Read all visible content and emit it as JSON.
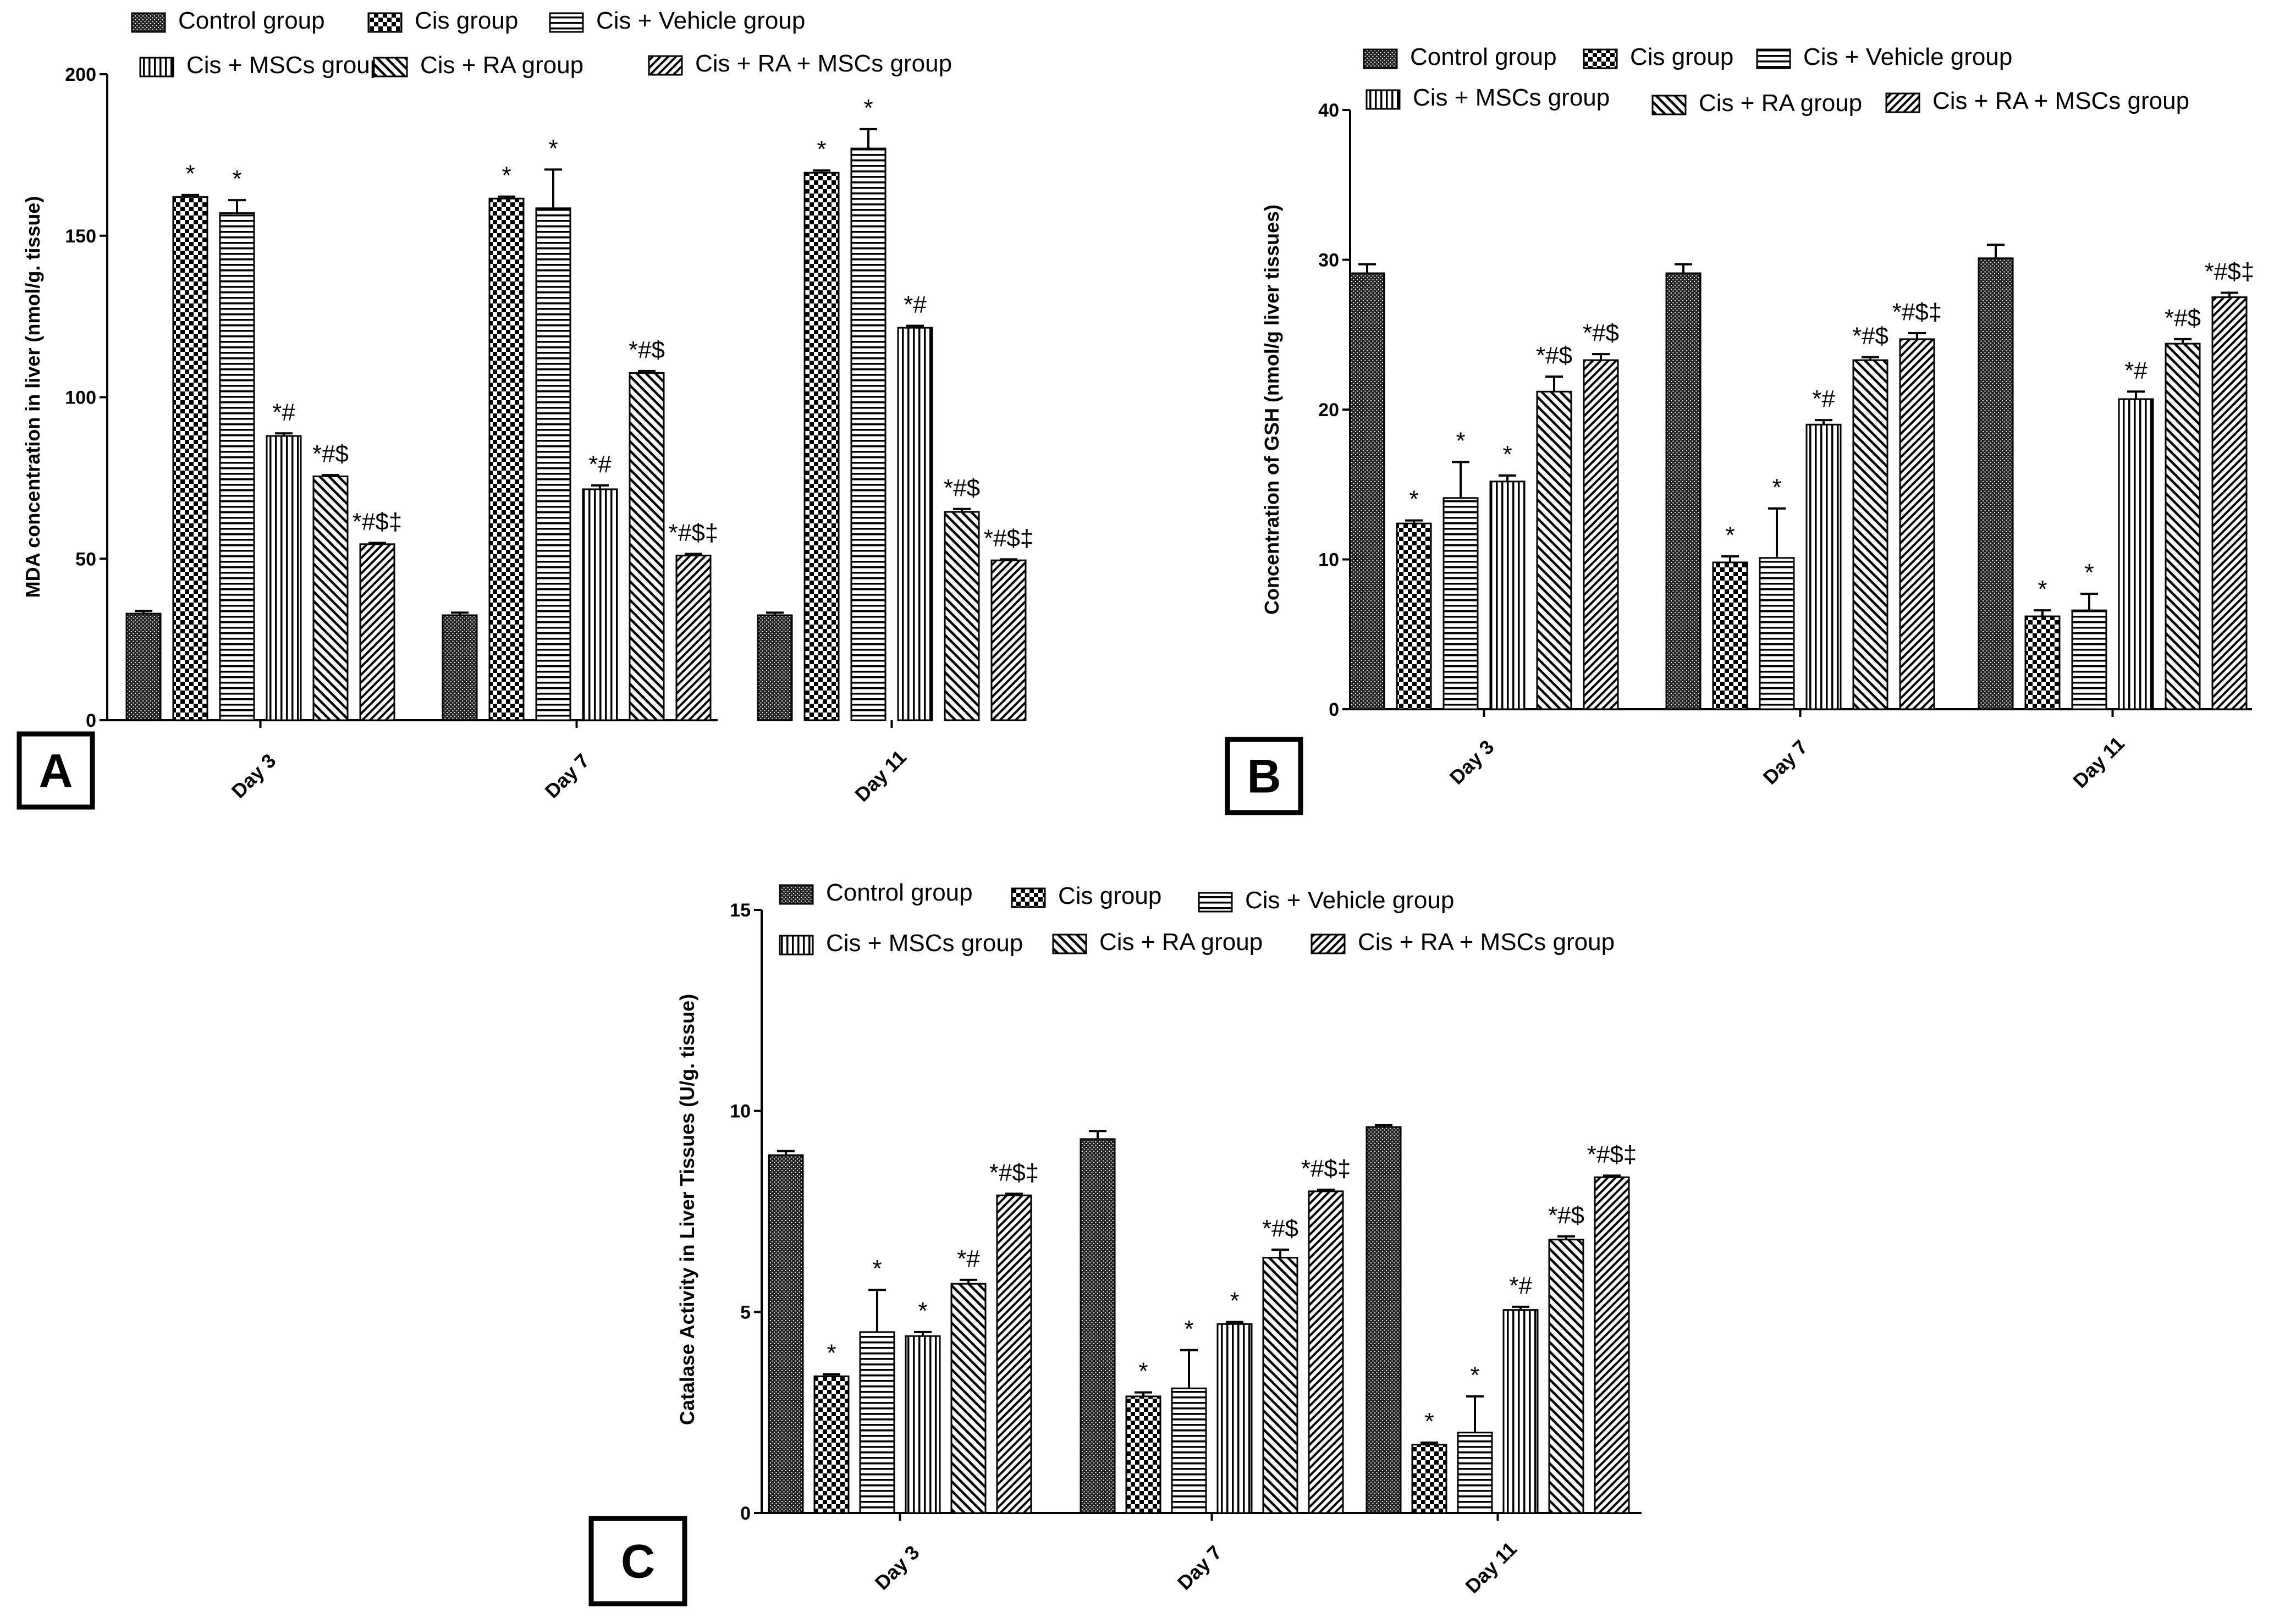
{
  "legend_labels": [
    "Control group",
    "Cis group",
    "Cis + Vehicle group",
    "Cis + MSCs group",
    "Cis + RA group",
    "Cis + RA + MSCs group"
  ],
  "colors": {
    "ink": "#000000",
    "paper": "#ffffff"
  },
  "chart_data": [
    {
      "panel": "A",
      "type": "bar",
      "title": "",
      "xlabel": "",
      "ylabel": "MDA concentration in liver (nmol/g. tissue)",
      "ylim": [
        0,
        200
      ],
      "yticks": [
        "0",
        "50",
        "100",
        "150",
        "200"
      ],
      "categories": [
        "Day 3",
        "Day 7",
        "Day 11"
      ],
      "series": [
        {
          "name": "Control group",
          "values": [
            33,
            32.5,
            32.5
          ],
          "errors": [
            0.8,
            0.8,
            0.8
          ],
          "annotations": [
            "",
            "",
            ""
          ]
        },
        {
          "name": "Cis group",
          "values": [
            162,
            161.5,
            169.5
          ],
          "errors": [
            0.6,
            0.6,
            0.7
          ],
          "annotations": [
            "*",
            "*",
            "*"
          ]
        },
        {
          "name": "Cis + Vehicle group",
          "values": [
            157,
            158.5,
            177
          ],
          "errors": [
            4,
            12,
            6
          ],
          "annotations": [
            "*",
            "*",
            "*"
          ]
        },
        {
          "name": "Cis + MSCs group",
          "values": [
            88,
            71.5,
            121.5
          ],
          "errors": [
            0.8,
            1.2,
            0.6
          ],
          "annotations": [
            "*#",
            "*#",
            "*#"
          ]
        },
        {
          "name": "Cis + RA group",
          "values": [
            75.5,
            107.5,
            64.5
          ],
          "errors": [
            0.4,
            0.6,
            0.9
          ],
          "annotations": [
            "*#$",
            "*#$",
            "*#$"
          ]
        },
        {
          "name": "Cis + RA + MSCs group",
          "values": [
            54.5,
            51,
            49.5
          ],
          "errors": [
            0.4,
            0.5,
            0.3
          ],
          "annotations": [
            "*#$‡",
            "*#$‡",
            "*#$‡"
          ]
        }
      ]
    },
    {
      "panel": "B",
      "type": "bar",
      "title": "",
      "xlabel": "",
      "ylabel": "Concentration of GSH (nmol/g liver tissues)",
      "ylim": [
        0,
        40
      ],
      "yticks": [
        "0",
        "10",
        "20",
        "30",
        "40"
      ],
      "categories": [
        "Day 3",
        "Day 7",
        "Day 11"
      ],
      "series": [
        {
          "name": "Control group",
          "values": [
            29.1,
            29.1,
            30.1
          ],
          "errors": [
            0.6,
            0.6,
            0.9
          ],
          "annotations": [
            "",
            "",
            ""
          ]
        },
        {
          "name": "Cis group",
          "values": [
            12.4,
            9.8,
            6.2
          ],
          "errors": [
            0.2,
            0.4,
            0.4
          ],
          "annotations": [
            "*",
            "*",
            "*"
          ]
        },
        {
          "name": "Cis + Vehicle group",
          "values": [
            14.1,
            10.1,
            6.6
          ],
          "errors": [
            2.4,
            3.3,
            1.1
          ],
          "annotations": [
            "*",
            "*",
            "*"
          ]
        },
        {
          "name": "Cis + MSCs group",
          "values": [
            15.2,
            19.0,
            20.7
          ],
          "errors": [
            0.4,
            0.3,
            0.5
          ],
          "annotations": [
            "*",
            "*#",
            "*#"
          ]
        },
        {
          "name": "Cis + RA group",
          "values": [
            21.2,
            23.3,
            24.4
          ],
          "errors": [
            1.0,
            0.2,
            0.3
          ],
          "annotations": [
            "*#$",
            "*#$",
            "*#$"
          ]
        },
        {
          "name": "Cis + RA + MSCs group",
          "values": [
            23.3,
            24.7,
            27.5
          ],
          "errors": [
            0.4,
            0.4,
            0.3
          ],
          "annotations": [
            "*#$",
            "*#$‡",
            "*#$‡"
          ]
        }
      ]
    },
    {
      "panel": "C",
      "type": "bar",
      "title": "",
      "xlabel": "",
      "ylabel": "Catalase Activity in Liver Tissues (U/g. tissue)",
      "ylim": [
        0,
        15
      ],
      "yticks": [
        "0",
        "5",
        "10",
        "15"
      ],
      "categories": [
        "Day 3",
        "Day 7",
        "Day 11"
      ],
      "series": [
        {
          "name": "Control group",
          "values": [
            8.9,
            9.3,
            9.6
          ],
          "errors": [
            0.1,
            0.2,
            0.05
          ],
          "annotations": [
            "",
            "",
            ""
          ]
        },
        {
          "name": "Cis group",
          "values": [
            3.4,
            2.9,
            1.7
          ],
          "errors": [
            0.05,
            0.1,
            0.05
          ],
          "annotations": [
            "*",
            "*",
            "*"
          ]
        },
        {
          "name": "Cis + Vehicle group",
          "values": [
            4.5,
            3.1,
            2.0
          ],
          "errors": [
            1.05,
            0.95,
            0.9
          ],
          "annotations": [
            "*",
            "*",
            "*"
          ]
        },
        {
          "name": "Cis + MSCs group",
          "values": [
            4.4,
            4.7,
            5.05
          ],
          "errors": [
            0.1,
            0.05,
            0.08
          ],
          "annotations": [
            "*",
            "*",
            "*#"
          ]
        },
        {
          "name": "Cis + RA group",
          "values": [
            5.7,
            6.35,
            6.8
          ],
          "errors": [
            0.1,
            0.2,
            0.08
          ],
          "annotations": [
            "*#",
            "*#$",
            "*#$"
          ]
        },
        {
          "name": "Cis + RA + MSCs group",
          "values": [
            7.9,
            8.0,
            8.35
          ],
          "errors": [
            0.04,
            0.04,
            0.04
          ],
          "annotations": [
            "*#$‡",
            "*#$‡",
            "*#$‡"
          ]
        }
      ]
    }
  ]
}
